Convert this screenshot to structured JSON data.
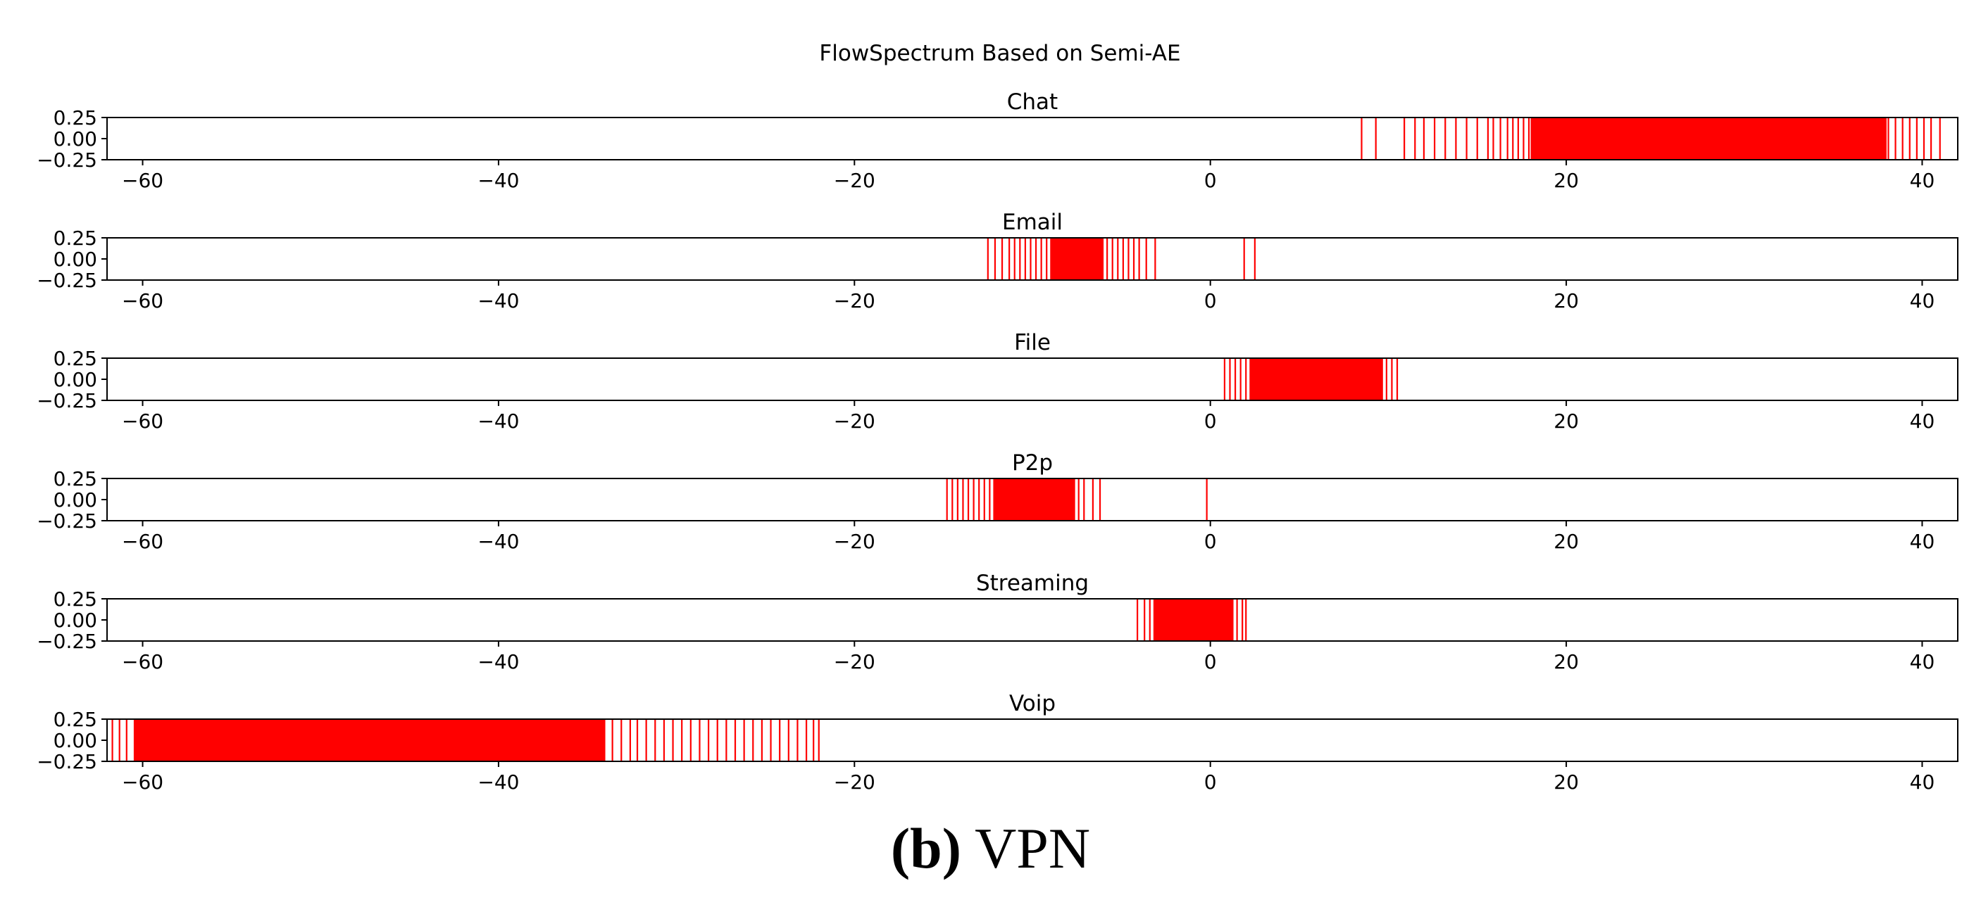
{
  "figure_title": "FlowSpectrum Based on Semi-AE",
  "caption": {
    "label": "(b)",
    "text": "VPN"
  },
  "chart_data": {
    "type": "spectrum",
    "title": "FlowSpectrum Based on Semi-AE",
    "xlim": [
      -62,
      42
    ],
    "ylim": [
      -0.25,
      0.25
    ],
    "xticks": [
      -60,
      -40,
      -20,
      0,
      20,
      40
    ],
    "xtick_labels": [
      "−60",
      "−40",
      "−20",
      "0",
      "20",
      "40"
    ],
    "yticks": [
      0.25,
      0.0,
      -0.25
    ],
    "ytick_labels": [
      "0.25",
      "0.00",
      "−0.25"
    ],
    "line_color": "#ff0000",
    "series": [
      {
        "name": "Chat",
        "lines": [
          8.5,
          9.3,
          10.9,
          11.5,
          12.0,
          12.6,
          13.2,
          13.8,
          14.4,
          15.0,
          15.6,
          15.9,
          16.3,
          16.7,
          17.0,
          17.3,
          17.6,
          17.9,
          38.1,
          38.5,
          38.9,
          39.3,
          39.7,
          40.1,
          40.5,
          41.0
        ],
        "bands": [
          [
            18.0,
            38.0
          ]
        ]
      },
      {
        "name": "Email",
        "lines": [
          -12.5,
          -12.1,
          -11.7,
          -11.3,
          -11.0,
          -10.7,
          -10.4,
          -10.1,
          -9.8,
          -9.5,
          -9.2,
          -5.8,
          -5.5,
          -5.2,
          -4.9,
          -4.6,
          -4.3,
          -4.0,
          -3.6,
          -3.1,
          1.9,
          2.5
        ],
        "bands": [
          [
            -9.0,
            -6.0
          ]
        ]
      },
      {
        "name": "File",
        "lines": [
          0.8,
          1.1,
          1.4,
          1.7,
          2.0,
          9.9,
          10.2,
          10.5
        ],
        "bands": [
          [
            2.2,
            9.7
          ]
        ]
      },
      {
        "name": "P2p",
        "lines": [
          -14.8,
          -14.5,
          -14.2,
          -13.9,
          -13.6,
          -13.3,
          -13.0,
          -12.7,
          -12.4,
          -7.4,
          -7.1,
          -6.6,
          -6.2,
          -0.2
        ],
        "bands": [
          [
            -12.2,
            -7.6
          ]
        ]
      },
      {
        "name": "Streaming",
        "lines": [
          -4.1,
          -3.7,
          -3.4,
          1.5,
          1.8,
          2.0
        ],
        "bands": [
          [
            -3.2,
            1.3
          ]
        ]
      },
      {
        "name": "Voip",
        "lines": [
          -61.7,
          -61.3,
          -60.9,
          -33.6,
          -33.1,
          -32.6,
          -32.2,
          -31.7,
          -31.2,
          -30.7,
          -30.2,
          -29.7,
          -29.2,
          -28.7,
          -28.2,
          -27.7,
          -27.2,
          -26.7,
          -26.2,
          -25.7,
          -25.2,
          -24.7,
          -24.2,
          -23.7,
          -23.2,
          -22.7,
          -22.3,
          -22.0
        ],
        "bands": [
          [
            -60.5,
            -34.0
          ]
        ]
      }
    ]
  }
}
